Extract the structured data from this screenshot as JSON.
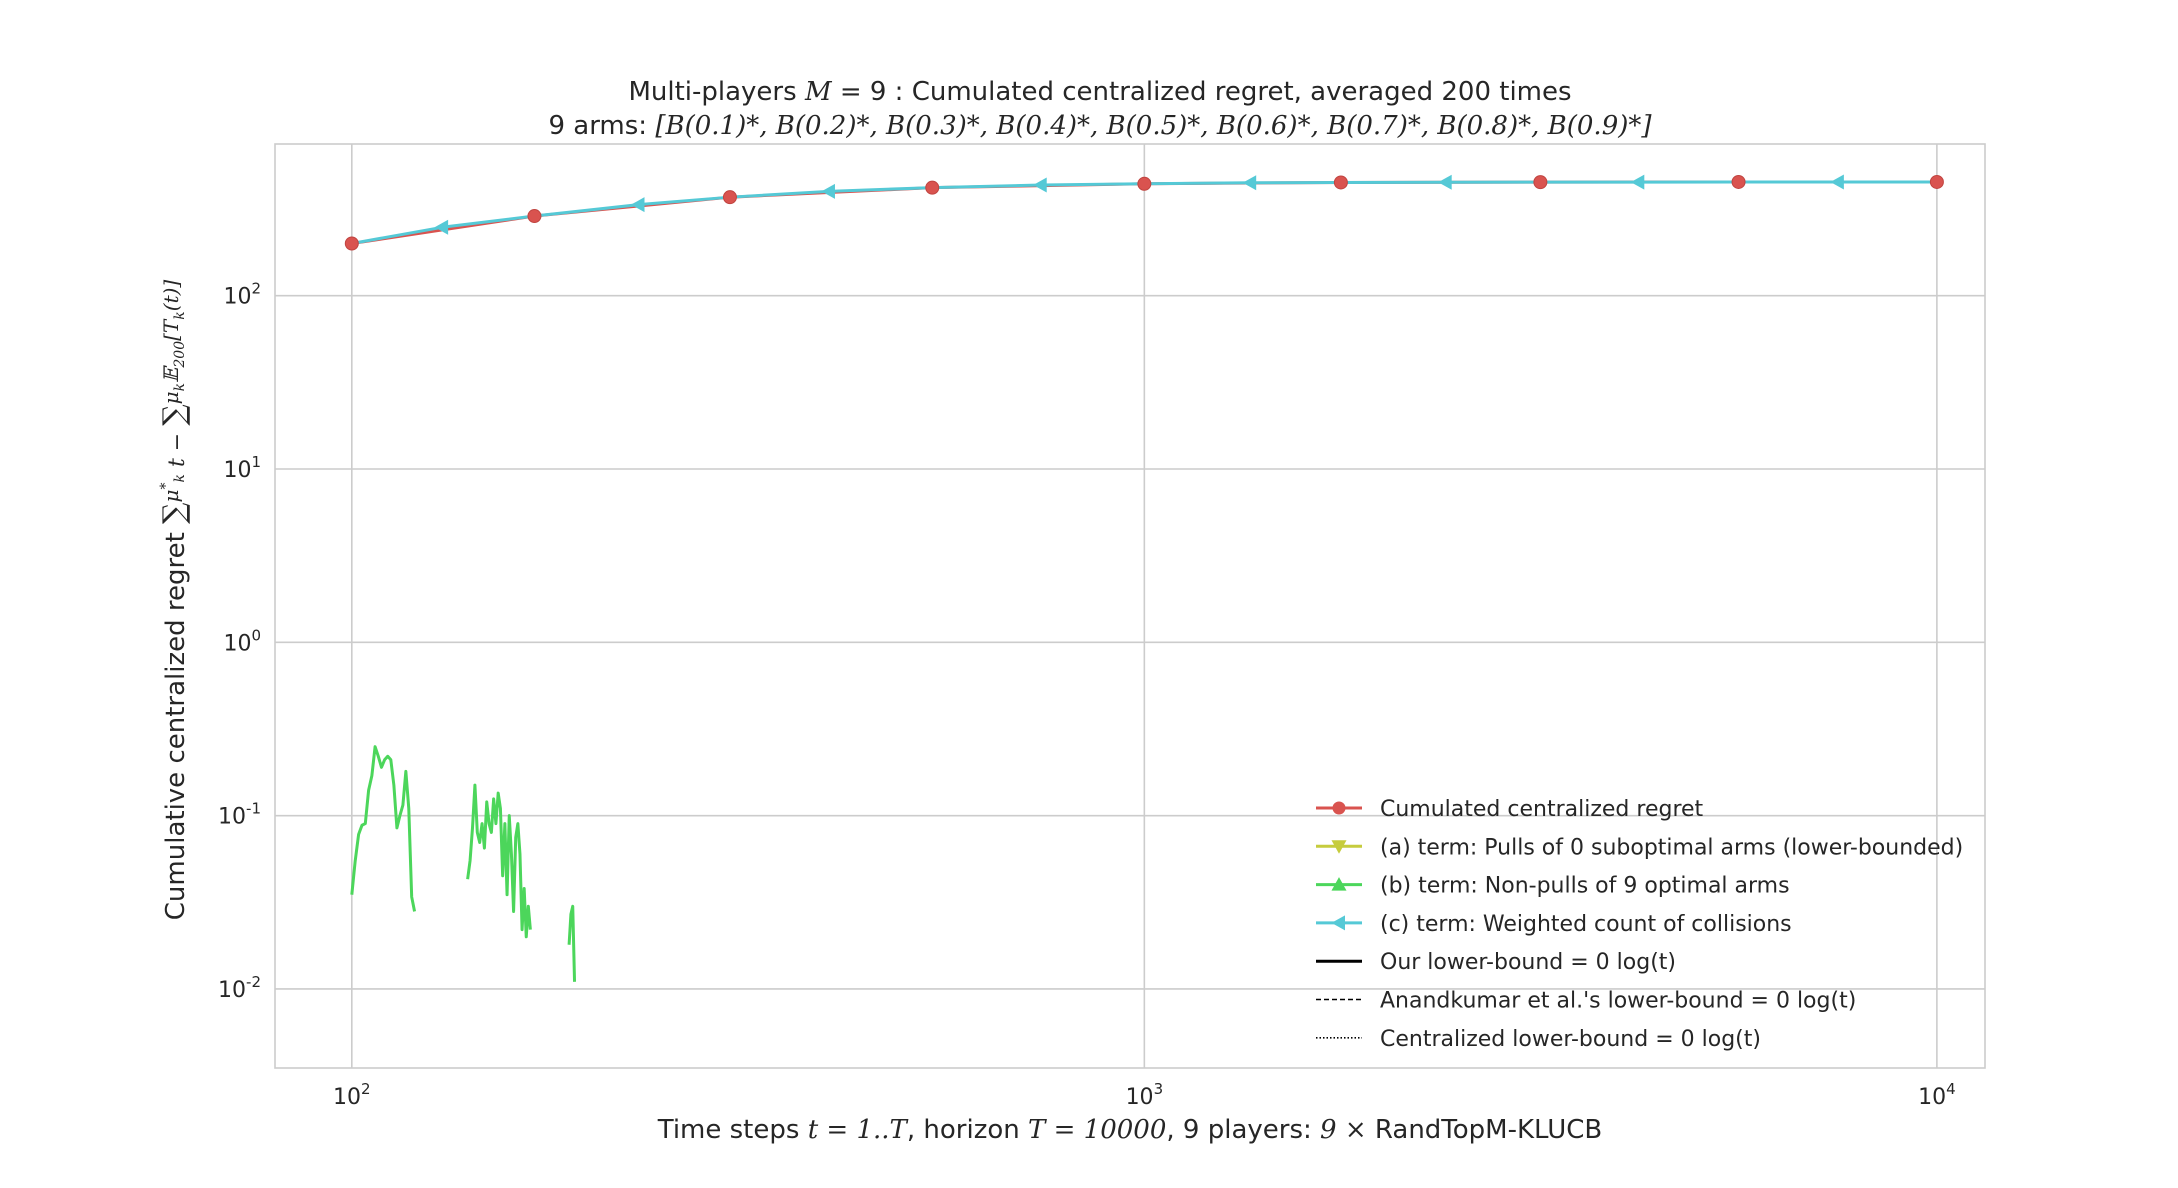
{
  "chart_data": {
    "type": "line",
    "title_line1": "Multi-players M = 9 : Cumulated centralized regret, averaged 200 times",
    "title_line2": "9 arms: [B(0.1)*, B(0.2)*, B(0.3)*, B(0.4)*, B(0.5)*, B(0.6)*, B(0.7)*, B(0.8)*, B(0.9)*]",
    "xlabel": "Time steps t = 1..T, horizon T = 10000, 9 players: 9 × RandTopM-KLUCB",
    "ylabel": "Cumulative centralized regret ∑_{k=1}^{9} μ*_k t − ∑_{k=1}^{9} μ_k E_200[T_k(t)]",
    "xscale": "log",
    "yscale": "log",
    "xlim": [
      80,
      11500
    ],
    "ylim": [
      0.0035,
      750
    ],
    "grid": true,
    "legend_position": "lower-right",
    "x_ticks": [
      {
        "value": 100,
        "label": "10",
        "exp": "2"
      },
      {
        "value": 1000,
        "label": "10",
        "exp": "3"
      },
      {
        "value": 10000,
        "label": "10",
        "exp": "4"
      }
    ],
    "y_ticks": [
      {
        "value": 0.01,
        "label": "10",
        "exp": "-2"
      },
      {
        "value": 0.1,
        "label": "10",
        "exp": "-1"
      },
      {
        "value": 1,
        "label": "10",
        "exp": "0"
      },
      {
        "value": 10,
        "label": "10",
        "exp": "1"
      },
      {
        "value": 100,
        "label": "10",
        "exp": "2"
      }
    ],
    "series": [
      {
        "name": "Cumulated centralized regret",
        "color": "#d9534f",
        "marker": "circle",
        "x": [
          100,
          170,
          300,
          540,
          1000,
          1770,
          3160,
          5620,
          10000
        ],
        "y": [
          200,
          288,
          370,
          420,
          442,
          450,
          452,
          453,
          453
        ]
      },
      {
        "name": "(a) term: Pulls of 0 suboptimal arms (lower-bounded)",
        "color": "#c6cc3d",
        "marker": "triangle-down",
        "x": [],
        "y": []
      },
      {
        "name": "(b) term: Non-pulls of 9 optimal arms",
        "color": "#4cd65b",
        "marker": "triangle-up",
        "segments": [
          {
            "x": [
              100,
              101,
              102,
              103,
              104,
              105,
              106,
              107,
              108,
              109,
              110,
              111,
              112,
              113,
              114,
              115,
              116,
              117,
              118,
              119,
              120
            ],
            "y": [
              0.035,
              0.055,
              0.078,
              0.088,
              0.09,
              0.14,
              0.17,
              0.25,
              0.22,
              0.19,
              0.21,
              0.22,
              0.21,
              0.15,
              0.085,
              0.1,
              0.115,
              0.18,
              0.11,
              0.034,
              0.028
            ]
          },
          {
            "x": [
              140,
              141,
              142,
              143,
              144,
              145,
              146,
              147,
              148,
              149,
              150,
              151,
              152,
              153,
              154,
              155,
              156,
              157,
              158,
              159,
              160,
              161,
              162,
              163,
              164,
              165,
              166,
              167,
              168
            ],
            "y": [
              0.043,
              0.055,
              0.085,
              0.15,
              0.08,
              0.07,
              0.09,
              0.065,
              0.12,
              0.09,
              0.08,
              0.125,
              0.09,
              0.135,
              0.11,
              0.045,
              0.09,
              0.035,
              0.1,
              0.06,
              0.028,
              0.075,
              0.09,
              0.06,
              0.022,
              0.038,
              0.02,
              0.03,
              0.022
            ]
          },
          {
            "x": [
              188,
              189,
              190,
              191
            ],
            "y": [
              0.018,
              0.027,
              0.03,
              0.011
            ]
          }
        ]
      },
      {
        "name": "(c) term: Weighted count of collisions",
        "color": "#55c9d6",
        "marker": "triangle-left",
        "x": [
          100,
          130,
          170,
          230,
          300,
          400,
          540,
          740,
          1000,
          1360,
          1770,
          2400,
          3160,
          4200,
          5620,
          7500,
          10000
        ],
        "y": [
          200,
          248,
          288,
          335,
          370,
          400,
          420,
          435,
          442,
          448,
          450,
          451,
          452,
          452,
          453,
          453,
          453
        ]
      },
      {
        "name": "Our lower-bound = 0 log(t)",
        "color": "#000000",
        "linestyle": "solid",
        "x": [],
        "y": []
      },
      {
        "name": "Anandkumar et al.'s lower-bound = 0 log(t)",
        "color": "#000000",
        "linestyle": "dashed",
        "x": [],
        "y": []
      },
      {
        "name": "Centralized lower-bound = 0 log(t)",
        "color": "#000000",
        "linestyle": "dotted",
        "x": [],
        "y": []
      }
    ]
  }
}
